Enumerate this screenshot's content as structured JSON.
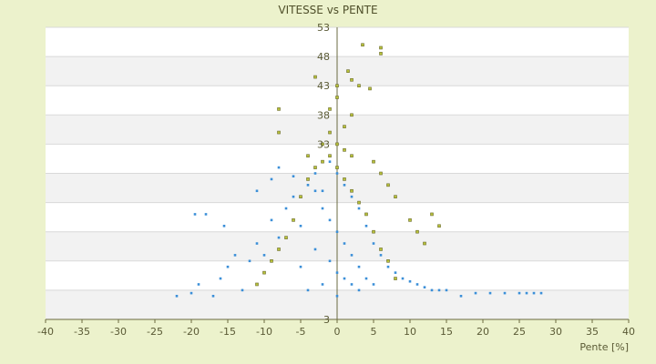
{
  "chart_data": {
    "type": "scatter",
    "title": "VITESSE vs PENTE",
    "xlabel": "Pente [%]",
    "ylabel": "",
    "xlim": [
      -40,
      40
    ],
    "ylim": [
      3,
      53
    ],
    "x_ticks": [
      "-40",
      "-35",
      "-30",
      "-25",
      "-20",
      "-15",
      "-10",
      "-5",
      "0",
      "5",
      "10",
      "15",
      "20",
      "25",
      "30",
      "35",
      "40"
    ],
    "y_ticks": [
      "3",
      "8",
      "13",
      "18",
      "23",
      "28",
      "33",
      "38",
      "43",
      "48",
      "53"
    ],
    "y_tick_labels_shown": [
      "3",
      "33",
      "38",
      "43",
      "48",
      "53"
    ],
    "grid": true,
    "legend": "none",
    "series": [
      {
        "name": "",
        "color": "#3b8fd8",
        "values": [
          [
            -22,
            7
          ],
          [
            -20,
            7.5
          ],
          [
            -19,
            9
          ],
          [
            -17,
            7
          ],
          [
            -16,
            10
          ],
          [
            -15,
            12
          ],
          [
            -14,
            14
          ],
          [
            -13,
            8
          ],
          [
            -12,
            13
          ],
          [
            -11,
            16
          ],
          [
            -10,
            14
          ],
          [
            -9,
            20
          ],
          [
            -8,
            17
          ],
          [
            -7,
            22
          ],
          [
            -6,
            24
          ],
          [
            -5,
            19
          ],
          [
            -4,
            26
          ],
          [
            -3,
            28
          ],
          [
            -2,
            25
          ],
          [
            -1,
            30
          ],
          [
            0,
            28
          ],
          [
            1,
            26
          ],
          [
            2,
            24
          ],
          [
            3,
            22
          ],
          [
            4,
            19
          ],
          [
            5,
            16
          ],
          [
            6,
            14
          ],
          [
            7,
            12
          ],
          [
            8,
            11
          ],
          [
            9,
            10
          ],
          [
            10,
            9.5
          ],
          [
            11,
            9
          ],
          [
            12,
            8.5
          ],
          [
            13,
            8
          ],
          [
            14,
            8
          ],
          [
            15,
            8
          ],
          [
            17,
            7
          ],
          [
            19,
            7.5
          ],
          [
            21,
            7.5
          ],
          [
            23,
            7.5
          ],
          [
            25,
            7.5
          ],
          [
            26,
            7.5
          ],
          [
            27,
            7.5
          ],
          [
            28,
            7.5
          ],
          [
            -19.5,
            21
          ],
          [
            -18,
            21
          ],
          [
            -15.5,
            19
          ],
          [
            -11,
            25
          ],
          [
            -9,
            27
          ],
          [
            -8,
            29
          ],
          [
            -6,
            27.5
          ],
          [
            -3,
            25
          ],
          [
            -2,
            22
          ],
          [
            -1,
            20
          ],
          [
            0,
            18
          ],
          [
            1,
            16
          ],
          [
            2,
            14
          ],
          [
            3,
            12
          ],
          [
            4,
            10
          ],
          [
            5,
            9
          ],
          [
            -5,
            12
          ],
          [
            -3,
            15
          ],
          [
            -1,
            13
          ],
          [
            0,
            11
          ],
          [
            1,
            10
          ],
          [
            2,
            9
          ],
          [
            3,
            8
          ],
          [
            -4,
            8
          ],
          [
            -2,
            9
          ],
          [
            0,
            7
          ]
        ]
      },
      {
        "name": "",
        "color": "#b8c23a",
        "values": [
          [
            3.5,
            50
          ],
          [
            6,
            49.5
          ],
          [
            6,
            48.5
          ],
          [
            1.5,
            45.5
          ],
          [
            2,
            44
          ],
          [
            3,
            43
          ],
          [
            4.5,
            42.5
          ],
          [
            0,
            43
          ],
          [
            -3,
            44.5
          ],
          [
            0,
            41
          ],
          [
            -1,
            39
          ],
          [
            2,
            38
          ],
          [
            1,
            36
          ],
          [
            -1,
            35
          ],
          [
            -8,
            39
          ],
          [
            -8,
            35
          ],
          [
            0,
            33
          ],
          [
            1,
            32
          ],
          [
            2,
            31
          ],
          [
            -2,
            30
          ],
          [
            -4,
            31
          ],
          [
            5,
            30
          ],
          [
            6,
            28
          ],
          [
            7,
            26
          ],
          [
            8,
            24
          ],
          [
            10,
            20
          ],
          [
            11,
            18
          ],
          [
            12,
            16
          ],
          [
            13,
            21
          ],
          [
            14,
            19
          ],
          [
            -6,
            20
          ],
          [
            -7,
            17
          ],
          [
            -8,
            15
          ],
          [
            -9,
            13
          ],
          [
            -10,
            11
          ],
          [
            -11,
            9
          ],
          [
            -5,
            24
          ],
          [
            -4,
            27
          ],
          [
            -3,
            29
          ],
          [
            -2,
            33
          ],
          [
            -1,
            31
          ],
          [
            0,
            29
          ],
          [
            1,
            27
          ],
          [
            2,
            25
          ],
          [
            3,
            23
          ],
          [
            4,
            21
          ],
          [
            5,
            18
          ],
          [
            6,
            15
          ],
          [
            7,
            13
          ],
          [
            8,
            10
          ]
        ]
      }
    ]
  }
}
